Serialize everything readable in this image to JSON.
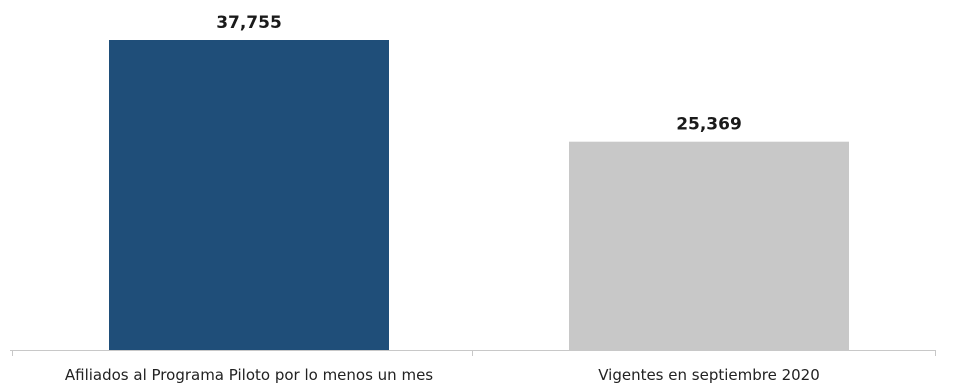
{
  "chart_data": {
    "type": "bar",
    "categories": [
      "Afiliados al Programa Piloto por lo menos un mes",
      "Vigentes en septiembre 2020"
    ],
    "values": [
      37755,
      25369
    ],
    "value_labels": [
      "37,755",
      "25,369"
    ],
    "colors": [
      "#1f4e79",
      "#c8c8c8"
    ],
    "title": "",
    "xlabel": "",
    "ylabel": "",
    "ylim": [
      0,
      40000
    ],
    "grid": false,
    "legend": "none"
  }
}
